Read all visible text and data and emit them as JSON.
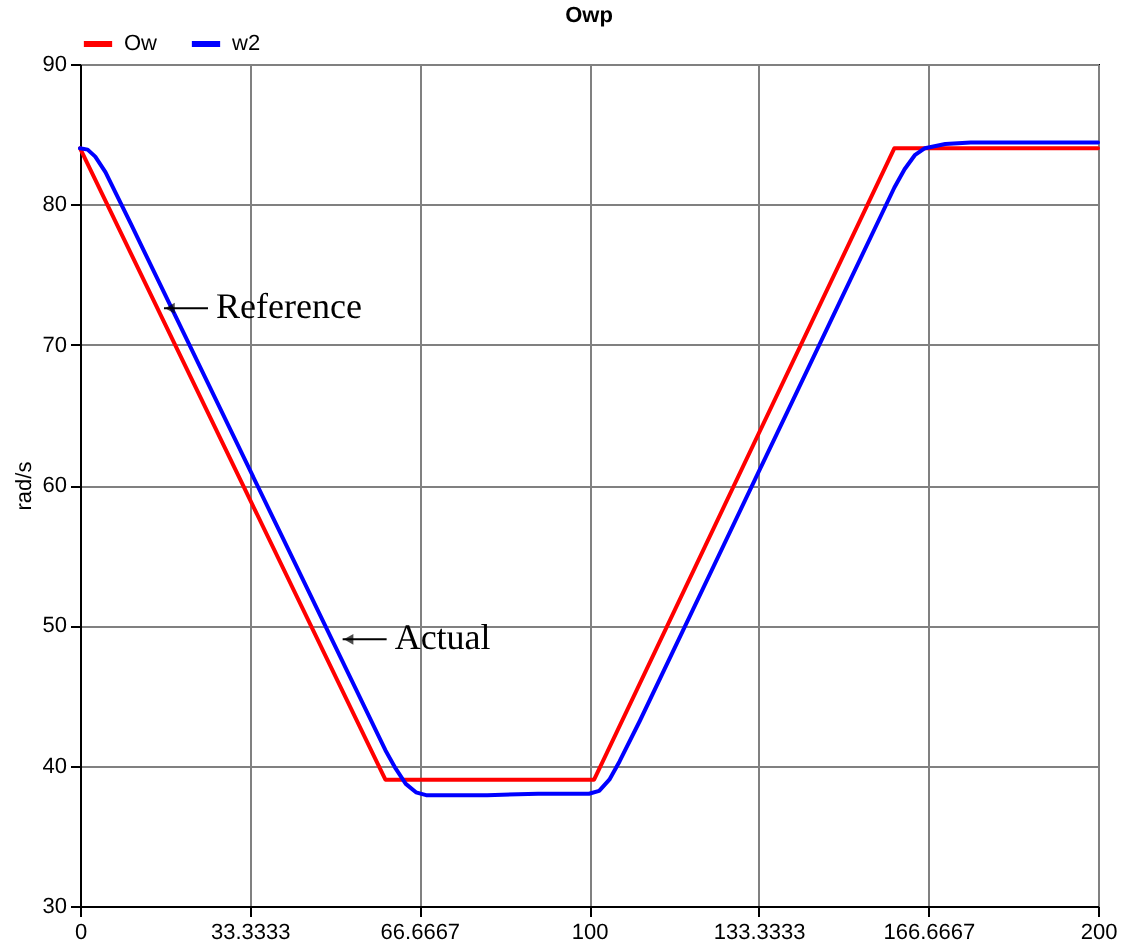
{
  "chart_data": {
    "type": "line",
    "title": "Owp",
    "ylabel": "rad/s",
    "xlim": [
      0,
      200
    ],
    "ylim": [
      30,
      90
    ],
    "xticks": [
      0,
      {
        "value": 33.3333,
        "label": "33.3333"
      },
      {
        "value": 66.6667,
        "label": "66.6667"
      },
      100,
      {
        "value": 133.3333,
        "label": "133.3333"
      },
      {
        "value": 166.6667,
        "label": "166.6667"
      },
      200
    ],
    "yticks": [
      30,
      40,
      50,
      60,
      70,
      80,
      90
    ],
    "grid": true,
    "legend": "top",
    "series": [
      {
        "name": "Ow",
        "color": "#ff0000",
        "x": [
          0,
          60,
          101,
          160,
          200
        ],
        "values": [
          84,
          39,
          39,
          84,
          84
        ]
      },
      {
        "name": "w2",
        "color": "#0000ff",
        "x": [
          0,
          1.5,
          3,
          5,
          10,
          20,
          30,
          40,
          50,
          60,
          62,
          64,
          66,
          68,
          80,
          90,
          100,
          102,
          104,
          106,
          110,
          120,
          130,
          140,
          150,
          160,
          162,
          164,
          166,
          170,
          175,
          200
        ],
        "values": [
          84,
          83.9,
          83.4,
          82.3,
          78.6,
          71.1,
          63.6,
          56.1,
          48.6,
          41.1,
          39.8,
          38.7,
          38.1,
          37.9,
          37.9,
          38,
          38,
          38.2,
          39,
          40.3,
          43.2,
          50.8,
          58.4,
          66,
          73.6,
          81.2,
          82.5,
          83.5,
          84,
          84.3,
          84.4,
          84.4
        ]
      }
    ],
    "annotations": [
      {
        "text": "Reference",
        "x": 16.5,
        "y": 72.6
      },
      {
        "text": "Actual",
        "x": 51.6,
        "y": 49
      }
    ]
  }
}
